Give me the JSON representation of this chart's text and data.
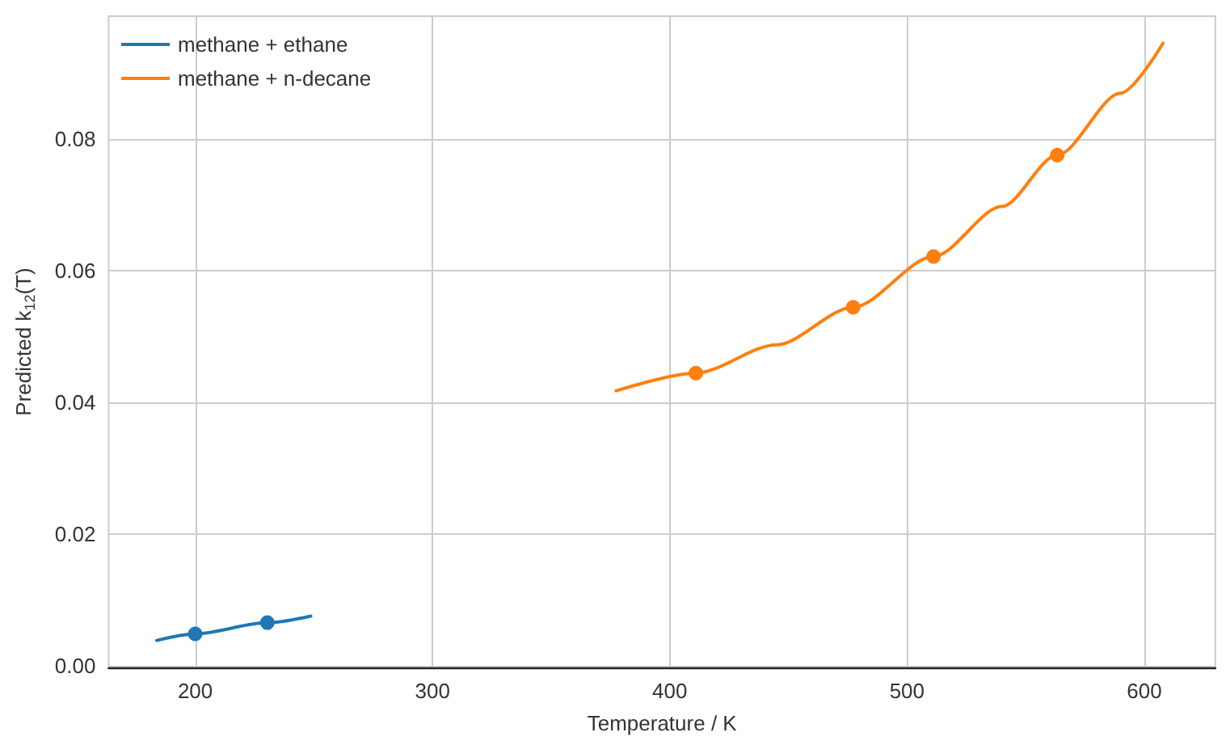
{
  "chart_data": {
    "type": "line",
    "xlabel": "Temperature / K",
    "ylabel": "Predicted k$_{12}$(T)",
    "xlim": [
      163.5,
      630
    ],
    "xticks": [
      200,
      300,
      400,
      500,
      600
    ],
    "ylim": [
      -0.0002,
      0.0987
    ],
    "yticks": [
      {
        "value": 0,
        "label": "0.00"
      },
      {
        "value": 0.02,
        "label": "0.02"
      },
      {
        "value": 0.04,
        "label": "0.04"
      },
      {
        "value": 0.06,
        "label": "0.06"
      },
      {
        "value": 0.08,
        "label": "0.08"
      }
    ],
    "grid": true,
    "legend": "top left",
    "series": [
      {
        "name": "methane + ethane",
        "color": "#1f77b4",
        "x": [
          183.8,
          200,
          230.4,
          248.7
        ],
        "values": [
          0.0039,
          0.0049,
          0.0066,
          0.0076
        ]
      },
      {
        "name": "methane + n-decane",
        "color": "#ff7f0e",
        "x": [
          377.4,
          411,
          445,
          477.3,
          511.2,
          540,
          563.3,
          590,
          607.9
        ],
        "values": [
          0.0418,
          0.0445,
          0.0488,
          0.0545,
          0.0622,
          0.0698,
          0.0776,
          0.087,
          0.0946
        ]
      },
      {
        "type": "scatter",
        "color": "#1f77b4",
        "x": [
          200,
          230.4
        ],
        "values": [
          0.0049,
          0.0066
        ]
      },
      {
        "type": "scatter",
        "color": "#ff7f0e",
        "x": [
          411,
          477.3,
          511.2,
          563.3
        ],
        "values": [
          0.0445,
          0.0545,
          0.0622,
          0.0776
        ]
      }
    ]
  }
}
